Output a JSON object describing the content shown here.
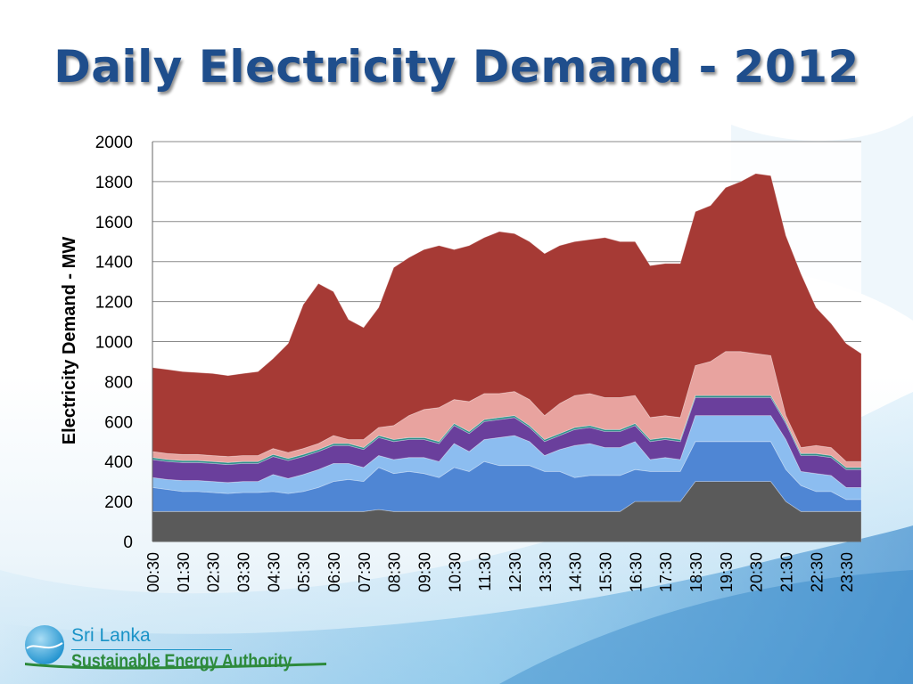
{
  "slide": {
    "title": "Daily Electricity Demand - 2012",
    "org_line1": "Sri Lanka",
    "org_line2": "Sustainable Energy Authority"
  },
  "icons": [
    "globe-logo-icon"
  ],
  "chart_data": {
    "type": "area",
    "stacked": true,
    "title": "",
    "xlabel": "",
    "ylabel": "Electricity Demand - MW",
    "ylim": [
      0,
      2000
    ],
    "yticks": [
      0,
      200,
      400,
      600,
      800,
      1000,
      1200,
      1400,
      1600,
      1800,
      2000
    ],
    "grid": true,
    "legend": "none",
    "x": [
      "00:30",
      "01:00",
      "01:30",
      "02:00",
      "02:30",
      "03:00",
      "03:30",
      "04:00",
      "04:30",
      "05:00",
      "05:30",
      "06:00",
      "06:30",
      "07:00",
      "07:30",
      "08:00",
      "08:30",
      "09:00",
      "09:30",
      "10:00",
      "10:30",
      "11:00",
      "11:30",
      "12:00",
      "12:30",
      "13:00",
      "13:30",
      "14:00",
      "14:30",
      "15:00",
      "15:30",
      "16:00",
      "16:30",
      "17:00",
      "17:30",
      "18:00",
      "18:30",
      "19:00",
      "19:30",
      "20:00",
      "20:30",
      "21:00",
      "21:30",
      "22:00",
      "22:30",
      "23:00",
      "23:30",
      "24:00"
    ],
    "xtick_labels": [
      "00:30",
      "01:30",
      "02:30",
      "03:30",
      "04:30",
      "05:30",
      "06:30",
      "07:30",
      "08:30",
      "09:30",
      "10:30",
      "11:30",
      "12:30",
      "13:30",
      "14:30",
      "15:30",
      "16:30",
      "17:30",
      "18:30",
      "19:30",
      "20:30",
      "21:30",
      "22:30",
      "23:30"
    ],
    "series": [
      {
        "color": "#5a5a5a",
        "values": [
          150,
          150,
          150,
          150,
          150,
          150,
          150,
          150,
          150,
          150,
          150,
          150,
          150,
          150,
          150,
          160,
          150,
          150,
          150,
          150,
          150,
          150,
          150,
          150,
          150,
          150,
          150,
          150,
          150,
          150,
          150,
          150,
          200,
          200,
          200,
          200,
          300,
          300,
          300,
          300,
          300,
          300,
          200,
          150,
          150,
          150,
          150,
          150
        ]
      },
      {
        "color": "#4f86d4",
        "values": [
          120,
          110,
          100,
          100,
          95,
          90,
          95,
          95,
          100,
          90,
          100,
          120,
          150,
          160,
          150,
          210,
          190,
          200,
          190,
          170,
          220,
          200,
          250,
          230,
          230,
          230,
          200,
          200,
          170,
          180,
          180,
          180,
          160,
          150,
          150,
          150,
          200,
          200,
          200,
          200,
          200,
          200,
          160,
          130,
          100,
          100,
          60,
          60
        ]
      },
      {
        "color": "#8cbdf0",
        "values": [
          50,
          50,
          55,
          55,
          55,
          55,
          55,
          55,
          85,
          75,
          85,
          90,
          90,
          80,
          70,
          60,
          70,
          70,
          80,
          80,
          120,
          100,
          110,
          140,
          150,
          120,
          80,
          110,
          160,
          160,
          140,
          140,
          140,
          60,
          70,
          60,
          130,
          130,
          130,
          130,
          130,
          130,
          150,
          70,
          90,
          80,
          60,
          60
        ]
      },
      {
        "color": "#6a3f9c",
        "values": [
          90,
          90,
          90,
          90,
          90,
          90,
          90,
          90,
          90,
          90,
          90,
          90,
          90,
          90,
          90,
          90,
          90,
          90,
          90,
          90,
          90,
          90,
          90,
          90,
          90,
          70,
          70,
          70,
          80,
          80,
          80,
          80,
          80,
          90,
          90,
          90,
          90,
          90,
          90,
          90,
          90,
          90,
          80,
          80,
          90,
          90,
          90,
          90
        ]
      },
      {
        "color": "#2d8f8a",
        "values": [
          10,
          10,
          10,
          10,
          10,
          10,
          10,
          10,
          10,
          10,
          10,
          10,
          10,
          10,
          10,
          10,
          10,
          10,
          10,
          10,
          10,
          10,
          10,
          10,
          10,
          10,
          10,
          10,
          10,
          10,
          10,
          10,
          10,
          10,
          10,
          10,
          10,
          10,
          10,
          10,
          10,
          10,
          10,
          10,
          10,
          10,
          10,
          10
        ]
      },
      {
        "color": "#e8a39f",
        "values": [
          30,
          30,
          30,
          30,
          30,
          30,
          30,
          30,
          30,
          30,
          30,
          30,
          40,
          20,
          40,
          40,
          70,
          110,
          140,
          170,
          120,
          150,
          130,
          120,
          120,
          130,
          120,
          150,
          160,
          160,
          160,
          160,
          140,
          110,
          110,
          110,
          150,
          170,
          220,
          220,
          210,
          200,
          30,
          30,
          40,
          40,
          30,
          30
        ]
      },
      {
        "color": "#a63a35",
        "values": [
          420,
          420,
          415,
          410,
          410,
          405,
          410,
          420,
          450,
          545,
          720,
          800,
          720,
          600,
          560,
          600,
          790,
          790,
          800,
          810,
          750,
          780,
          780,
          810,
          790,
          790,
          810,
          790,
          770,
          770,
          800,
          780,
          770,
          760,
          760,
          770,
          770,
          780,
          820,
          850,
          900,
          900,
          900,
          870,
          690,
          620,
          590,
          540
        ]
      }
    ]
  }
}
